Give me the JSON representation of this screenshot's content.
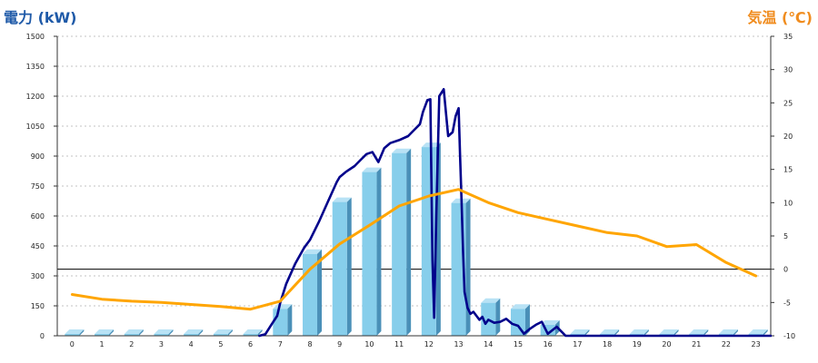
{
  "chart_data": {
    "type": "bar",
    "left_axis_title": "電力 (kW)",
    "right_axis_title": "気温 (℃)",
    "categories": [
      "0",
      "1",
      "2",
      "3",
      "4",
      "5",
      "6",
      "7",
      "8",
      "9",
      "10",
      "11",
      "12",
      "13",
      "14",
      "15",
      "16",
      "17",
      "18",
      "19",
      "20",
      "21",
      "22",
      "23"
    ],
    "left_ticks": [
      "0",
      "150",
      "300",
      "450",
      "600",
      "750",
      "900",
      "1050",
      "1200",
      "1350",
      "1500"
    ],
    "right_ticks": [
      "-10",
      "-5",
      "0",
      "5",
      "10",
      "15",
      "20",
      "25",
      "30",
      "35"
    ],
    "ylim_left": [
      0,
      1500
    ],
    "ylim_right": [
      -10,
      35
    ],
    "grid": "horizontal-dotted",
    "colors": {
      "bar": "#87ceeb",
      "bar_side": "#4a90b8",
      "power_line": "#00008b",
      "temperature_line": "#ffa500",
      "zero_line": "#000000"
    },
    "series": [
      {
        "type": "bar",
        "axis": "left",
        "values": [
          0,
          0,
          0,
          0,
          0,
          0,
          0,
          135,
          410,
          670,
          820,
          915,
          945,
          665,
          165,
          135,
          55,
          0,
          0,
          0,
          0,
          0,
          0,
          0
        ]
      },
      {
        "type": "line",
        "axis": "left",
        "x": [
          6.3,
          6.5,
          6.7,
          6.9,
          7.0,
          7.2,
          7.5,
          7.8,
          8.0,
          8.3,
          8.6,
          8.9,
          9.0,
          9.2,
          9.5,
          9.7,
          9.9,
          10.0,
          10.1,
          10.3,
          10.5,
          10.7,
          11.0,
          11.3,
          11.5,
          11.7,
          11.8,
          11.95,
          12.05,
          12.12,
          12.18,
          12.25,
          12.35,
          12.5,
          12.65,
          12.8,
          12.9,
          13.0,
          13.05,
          13.1,
          13.15,
          13.2,
          13.3,
          13.4,
          13.5,
          13.7,
          13.8,
          13.9,
          14.0,
          14.2,
          14.4,
          14.6,
          14.8,
          15.0,
          15.2,
          15.4,
          15.6,
          15.8,
          16.0,
          16.3,
          16.6,
          17.0,
          23.5
        ],
        "values": [
          0,
          8,
          55,
          100,
          165,
          260,
          360,
          440,
          480,
          570,
          670,
          770,
          795,
          820,
          850,
          880,
          910,
          915,
          920,
          870,
          940,
          965,
          980,
          1000,
          1030,
          1060,
          1120,
          1180,
          1185,
          380,
          90,
          600,
          1200,
          1235,
          1000,
          1020,
          1100,
          1140,
          900,
          680,
          420,
          220,
          140,
          110,
          120,
          80,
          95,
          60,
          80,
          65,
          70,
          85,
          60,
          50,
          10,
          35,
          55,
          70,
          10,
          45,
          0,
          0,
          0
        ]
      },
      {
        "type": "line",
        "axis": "right",
        "x": [
          0,
          1,
          2,
          3,
          4,
          5,
          6,
          7,
          8,
          9,
          10,
          11,
          12,
          13,
          14,
          15,
          16,
          17,
          18,
          19,
          20,
          21,
          22,
          23
        ],
        "values": [
          -3.8,
          -4.5,
          -4.8,
          -5.0,
          -5.3,
          -5.6,
          -6.0,
          -4.8,
          0.0,
          3.8,
          6.6,
          9.5,
          11.0,
          12.0,
          10.0,
          8.5,
          7.5,
          6.5,
          5.5,
          5.0,
          3.4,
          3.7,
          1.0,
          -1.0
        ]
      }
    ]
  }
}
